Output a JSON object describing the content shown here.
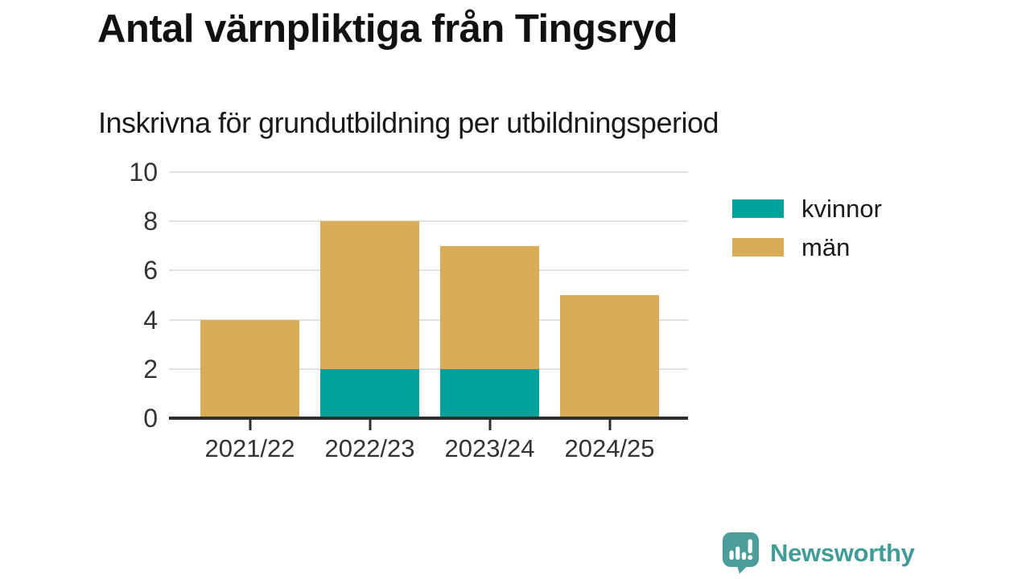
{
  "chart_data": {
    "type": "bar",
    "stacked": true,
    "title": "Antal värnpliktiga från Tingsryd",
    "subtitle": "Inskrivna för grundutbildning per utbildningsperiod",
    "categories": [
      "2021/22",
      "2022/23",
      "2023/24",
      "2024/25"
    ],
    "series": [
      {
        "name": "kvinnor",
        "color": "#00a29a",
        "values": [
          0,
          2,
          2,
          0
        ]
      },
      {
        "name": "män",
        "color": "#d9ac57",
        "values": [
          4,
          6,
          5,
          5
        ]
      }
    ],
    "ylim": [
      0,
      10
    ],
    "yticks": [
      0,
      2,
      4,
      6,
      8,
      10
    ],
    "grid": true,
    "legend_position": "right",
    "colors": {
      "grid": "#e1e1e1",
      "axis": "#2e2e2e",
      "tick_text": "#333333",
      "title_text": "#111111"
    }
  },
  "branding": {
    "logo_text": "Newsworthy",
    "logo_color": "#459c97",
    "logo_icon": "newsworthy-speech-bubble-bar-chart-icon"
  }
}
